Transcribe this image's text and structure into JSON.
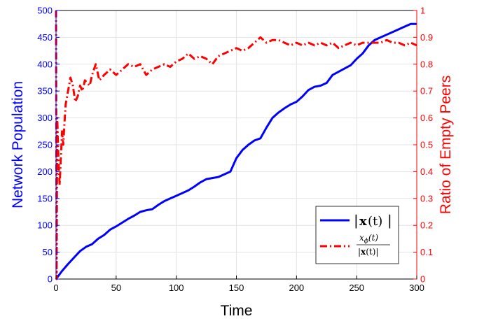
{
  "chart_data": {
    "type": "line",
    "xlabel": "Time",
    "ylabel_left": "Network Population",
    "ylabel_right": "Ratio of Empty Peers",
    "xlim": [
      0,
      300
    ],
    "ylim_left": [
      0,
      500
    ],
    "ylim_right": [
      0,
      1
    ],
    "x_ticks": [
      0,
      50,
      100,
      150,
      200,
      250,
      300
    ],
    "y_left_ticks": [
      0,
      50,
      100,
      150,
      200,
      250,
      300,
      350,
      400,
      450,
      500
    ],
    "y_right_ticks": [
      0,
      0.1,
      0.2,
      0.3,
      0.4,
      0.5,
      0.6,
      0.7,
      0.8,
      0.9,
      1
    ],
    "grid": true,
    "legend_position": "bottom-right",
    "series": [
      {
        "name": "|x(t)|",
        "axis": "left",
        "color": "#0000ff",
        "style": "solid",
        "x": [
          0,
          5,
          10,
          15,
          20,
          25,
          30,
          35,
          40,
          45,
          50,
          55,
          60,
          65,
          70,
          75,
          80,
          85,
          90,
          95,
          100,
          105,
          110,
          115,
          120,
          125,
          130,
          135,
          140,
          145,
          150,
          155,
          160,
          165,
          170,
          175,
          180,
          185,
          190,
          195,
          200,
          205,
          210,
          215,
          220,
          225,
          230,
          235,
          240,
          245,
          250,
          255,
          260,
          265,
          270,
          275,
          280,
          285,
          290,
          295,
          300
        ],
        "y": [
          0,
          15,
          28,
          40,
          52,
          60,
          65,
          75,
          82,
          92,
          98,
          105,
          112,
          118,
          125,
          128,
          130,
          138,
          145,
          150,
          155,
          160,
          165,
          172,
          180,
          186,
          188,
          190,
          195,
          200,
          225,
          240,
          250,
          258,
          262,
          282,
          300,
          310,
          318,
          325,
          330,
          340,
          352,
          358,
          360,
          365,
          380,
          386,
          392,
          398,
          410,
          420,
          435,
          445,
          450,
          455,
          460,
          465,
          470,
          475,
          475
        ]
      },
      {
        "name": "xφ(t)/|x(t)|",
        "axis": "right",
        "color": "#ff0000",
        "style": "dashdot",
        "x": [
          0,
          0.5,
          1,
          2,
          3,
          4,
          5,
          6,
          7,
          8,
          10,
          12,
          14,
          16,
          18,
          20,
          22,
          24,
          26,
          28,
          30,
          33,
          36,
          40,
          45,
          50,
          55,
          60,
          65,
          70,
          75,
          80,
          85,
          90,
          95,
          100,
          105,
          110,
          115,
          120,
          125,
          130,
          135,
          140,
          145,
          150,
          155,
          160,
          165,
          170,
          175,
          180,
          185,
          190,
          195,
          200,
          205,
          210,
          215,
          220,
          225,
          230,
          235,
          240,
          245,
          250,
          255,
          260,
          265,
          270,
          275,
          280,
          285,
          290,
          295,
          300
        ],
        "y": [
          1.0,
          0.0,
          0.6,
          0.45,
          0.35,
          0.45,
          0.55,
          0.5,
          0.58,
          0.65,
          0.7,
          0.75,
          0.72,
          0.66,
          0.68,
          0.72,
          0.7,
          0.74,
          0.73,
          0.72,
          0.76,
          0.8,
          0.74,
          0.76,
          0.78,
          0.76,
          0.78,
          0.8,
          0.79,
          0.8,
          0.76,
          0.78,
          0.79,
          0.8,
          0.79,
          0.81,
          0.82,
          0.84,
          0.82,
          0.83,
          0.82,
          0.8,
          0.83,
          0.84,
          0.85,
          0.86,
          0.85,
          0.86,
          0.88,
          0.9,
          0.88,
          0.89,
          0.89,
          0.88,
          0.87,
          0.88,
          0.87,
          0.88,
          0.87,
          0.88,
          0.87,
          0.88,
          0.86,
          0.87,
          0.88,
          0.87,
          0.88,
          0.88,
          0.88,
          0.88,
          0.89,
          0.88,
          0.88,
          0.87,
          0.88,
          0.87
        ]
      }
    ]
  }
}
